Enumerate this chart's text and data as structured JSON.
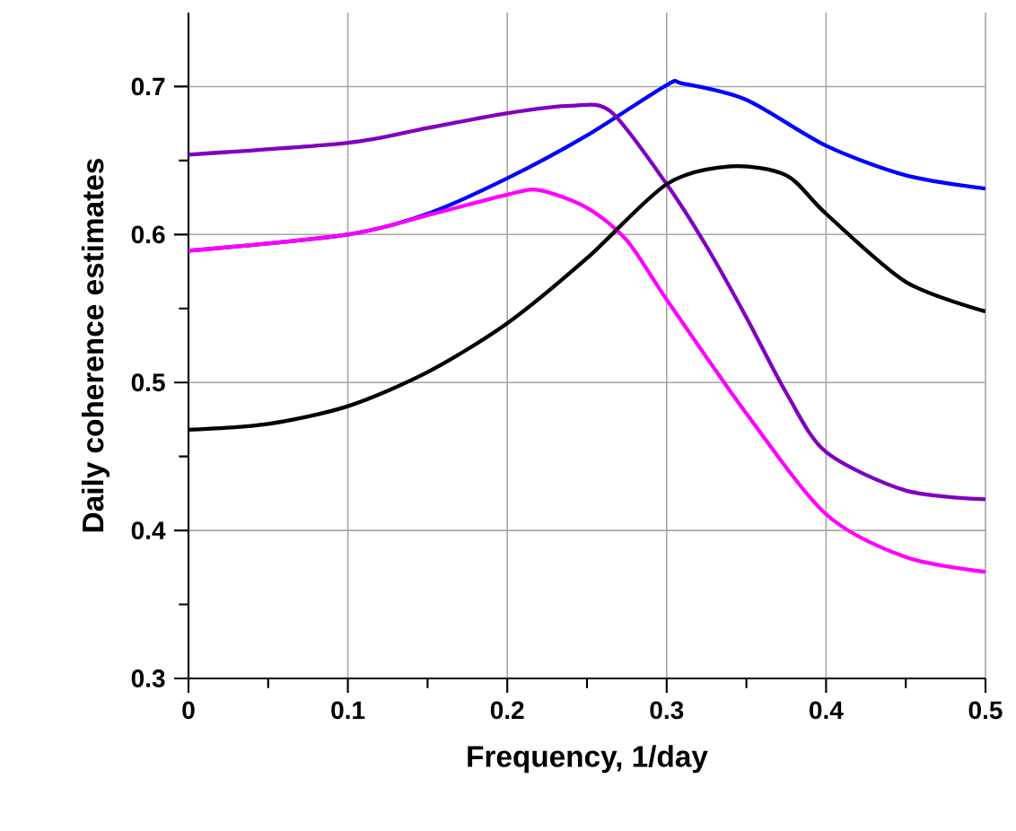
{
  "chart_data": {
    "type": "line",
    "xlabel": "Frequency, 1/day",
    "ylabel": "Daily coherence estimates",
    "xlim": [
      0,
      0.5
    ],
    "ylim": [
      0.3,
      0.75
    ],
    "xticks": [
      0,
      0.1,
      0.2,
      0.3,
      0.4,
      0.5
    ],
    "yticks": [
      0.3,
      0.4,
      0.5,
      0.6,
      0.7
    ],
    "grid": true,
    "legend": false,
    "marker": "none",
    "line_style": "solid",
    "series": [
      {
        "color": "#0000ff",
        "x": [
          0,
          0.1,
          0.15,
          0.2,
          0.25,
          0.3,
          0.31,
          0.35,
          0.4,
          0.45,
          0.5
        ],
        "values": [
          0.589,
          0.6,
          0.614,
          0.638,
          0.667,
          0.701,
          0.702,
          0.691,
          0.66,
          0.64,
          0.631
        ]
      },
      {
        "color": "#ff00ff",
        "x": [
          0,
          0.1,
          0.15,
          0.2,
          0.22,
          0.25,
          0.275,
          0.3,
          0.35,
          0.4,
          0.45,
          0.5
        ],
        "values": [
          0.589,
          0.6,
          0.613,
          0.627,
          0.63,
          0.618,
          0.596,
          0.556,
          0.479,
          0.411,
          0.382,
          0.372
        ]
      },
      {
        "color": "#8000c0",
        "x": [
          0,
          0.1,
          0.15,
          0.2,
          0.24,
          0.265,
          0.3,
          0.325,
          0.35,
          0.375,
          0.4,
          0.45,
          0.5
        ],
        "values": [
          0.654,
          0.662,
          0.672,
          0.682,
          0.687,
          0.683,
          0.634,
          0.592,
          0.544,
          0.493,
          0.453,
          0.427,
          0.421
        ]
      },
      {
        "color": "#000000",
        "x": [
          0,
          0.05,
          0.1,
          0.15,
          0.2,
          0.25,
          0.3,
          0.34,
          0.375,
          0.4,
          0.45,
          0.5
        ],
        "values": [
          0.468,
          0.472,
          0.484,
          0.507,
          0.54,
          0.584,
          0.634,
          0.646,
          0.64,
          0.614,
          0.568,
          0.548
        ]
      }
    ]
  }
}
